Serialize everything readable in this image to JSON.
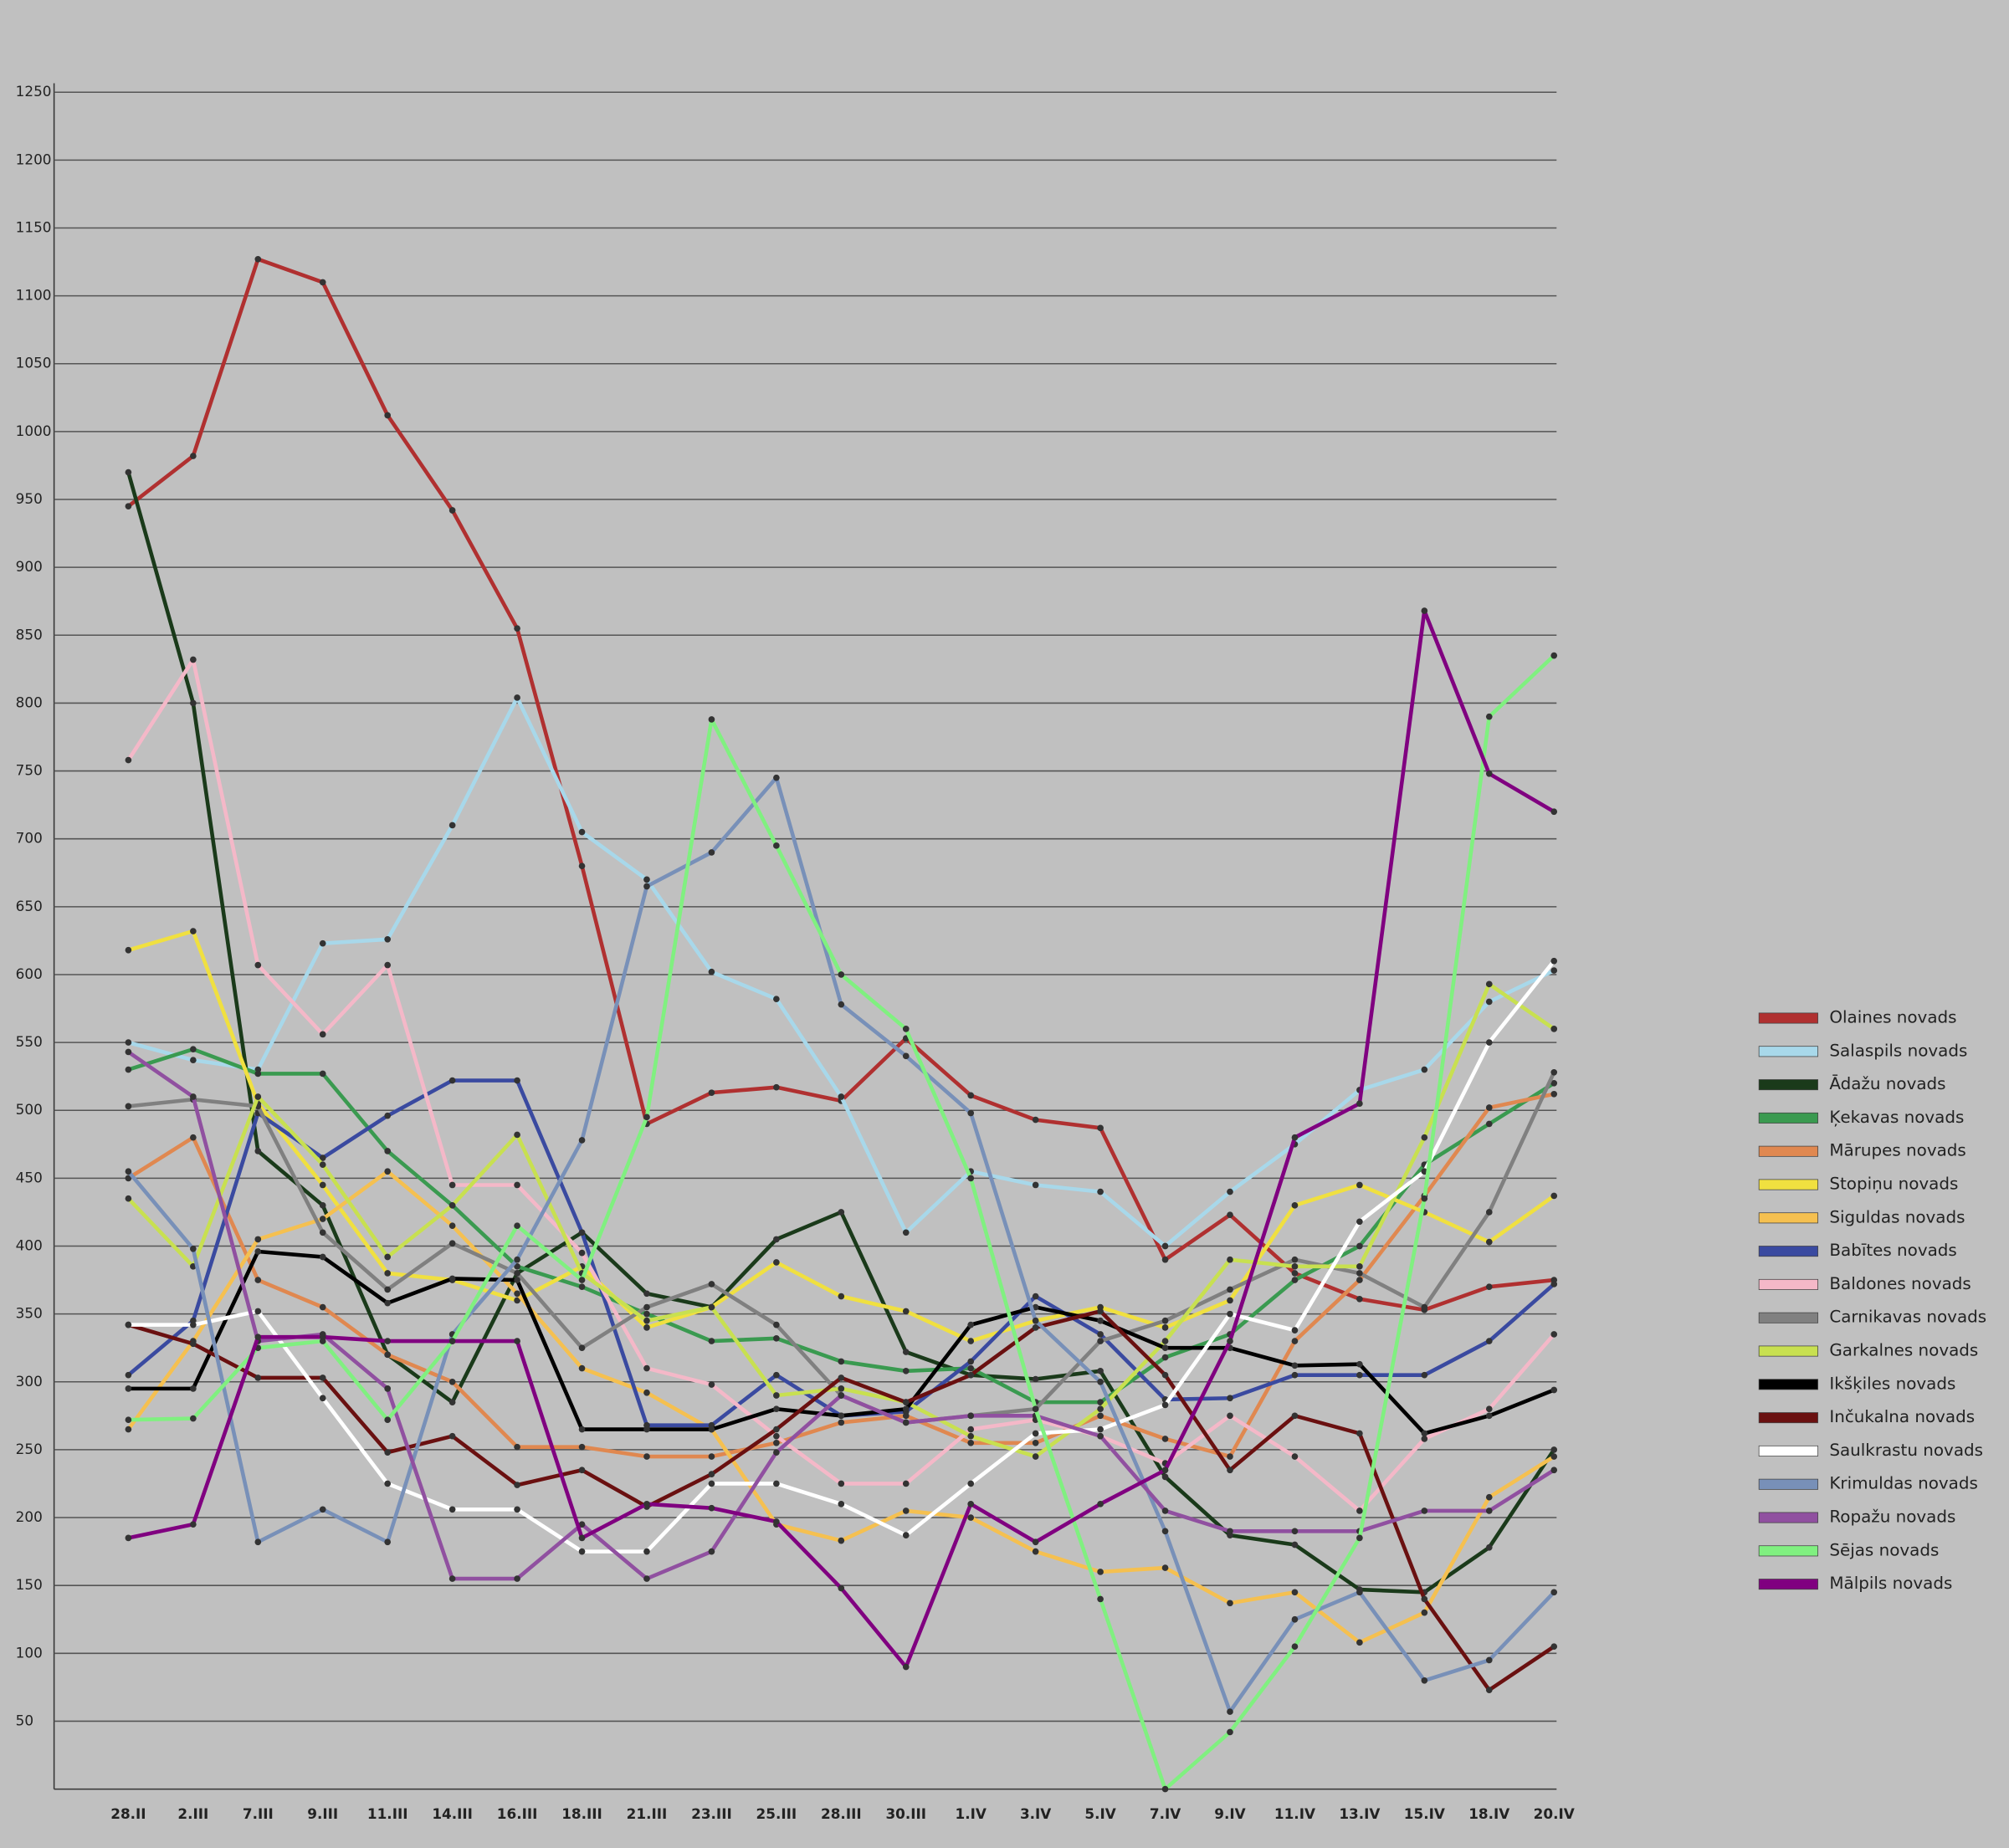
{
  "chart_data": {
    "type": "line",
    "categories": [
      "28.II",
      "2.III",
      "7.III",
      "9.III",
      "11.III",
      "14.III",
      "16.III",
      "18.III",
      "21.III",
      "23.III",
      "25.III",
      "28.III",
      "30.III",
      "1.IV",
      "3.IV",
      "5.IV",
      "7.IV",
      "9.IV",
      "11.IV",
      "13.IV",
      "15.IV",
      "18.IV",
      "20.IV"
    ],
    "ylim": [
      0,
      1250
    ],
    "yticks": [
      50,
      100,
      150,
      200,
      250,
      300,
      350,
      400,
      450,
      500,
      550,
      600,
      650,
      700,
      750,
      800,
      850,
      900,
      950,
      1000,
      1050,
      1100,
      1150,
      1200,
      1250
    ],
    "grid": true,
    "legend": "right",
    "series": [
      {
        "name": "Olaines novads",
        "color": "#b03030",
        "values": [
          945,
          982,
          1127,
          1110,
          1012,
          942,
          855,
          680,
          490,
          513,
          517,
          507,
          553,
          511,
          493,
          487,
          390,
          423,
          380,
          361,
          353,
          370,
          375
        ]
      },
      {
        "name": "Salaspils novads",
        "color": "#a8d8ea",
        "values": [
          550,
          537,
          530,
          623,
          626,
          710,
          804,
          705,
          670,
          602,
          582,
          510,
          410,
          455,
          445,
          440,
          400,
          440,
          475,
          515,
          530,
          580,
          603
        ]
      },
      {
        "name": "Ādažu novads",
        "color": "#1a3a1a",
        "values": [
          970,
          800,
          470,
          430,
          320,
          285,
          380,
          410,
          365,
          355,
          405,
          425,
          322,
          305,
          302,
          308,
          230,
          187,
          180,
          147,
          145,
          178,
          250
        ]
      },
      {
        "name": "Ķekavas novads",
        "color": "#3a9a50",
        "values": [
          530,
          545,
          527,
          527,
          470,
          430,
          385,
          370,
          350,
          330,
          332,
          315,
          308,
          310,
          285,
          285,
          318,
          335,
          375,
          400,
          460,
          490,
          520
        ]
      },
      {
        "name": "Mārupes novads",
        "color": "#e08850",
        "values": [
          450,
          480,
          375,
          355,
          320,
          300,
          252,
          252,
          245,
          245,
          255,
          270,
          275,
          255,
          255,
          275,
          258,
          245,
          330,
          375,
          437,
          502,
          512
        ]
      },
      {
        "name": "Stopiņu novads",
        "color": "#f0e040",
        "values": [
          618,
          632,
          505,
          445,
          380,
          375,
          360,
          385,
          340,
          355,
          388,
          363,
          352,
          330,
          345,
          355,
          340,
          360,
          430,
          445,
          425,
          403,
          437
        ]
      },
      {
        "name": "Siguldas novads",
        "color": "#f5c050",
        "values": [
          265,
          330,
          405,
          420,
          455,
          415,
          365,
          310,
          292,
          265,
          195,
          183,
          205,
          200,
          175,
          160,
          163,
          137,
          145,
          108,
          130,
          215,
          245
        ]
      },
      {
        "name": "Babītes novads",
        "color": "#3a4aa0",
        "values": [
          305,
          345,
          498,
          465,
          496,
          522,
          522,
          410,
          268,
          268,
          305,
          275,
          278,
          315,
          363,
          335,
          287,
          288,
          305,
          305,
          305,
          330,
          372
        ]
      },
      {
        "name": "Baldones novads",
        "color": "#f4b8c8",
        "values": [
          758,
          832,
          607,
          556,
          607,
          445,
          445,
          395,
          310,
          298,
          260,
          225,
          225,
          265,
          272,
          260,
          240,
          275,
          245,
          205,
          258,
          280,
          335
        ]
      },
      {
        "name": "Carnikavas novads",
        "color": "#808080",
        "values": [
          503,
          508,
          503,
          410,
          368,
          402,
          380,
          325,
          355,
          372,
          342,
          290,
          270,
          275,
          280,
          330,
          345,
          368,
          390,
          380,
          355,
          425,
          528
        ]
      },
      {
        "name": "Garkalnes novads",
        "color": "#c8e050",
        "values": [
          435,
          385,
          510,
          460,
          392,
          430,
          482,
          380,
          345,
          355,
          290,
          295,
          285,
          260,
          245,
          280,
          330,
          390,
          385,
          385,
          480,
          593,
          560
        ]
      },
      {
        "name": "Ikšķiles novads",
        "color": "#000000",
        "values": [
          295,
          295,
          396,
          392,
          358,
          376,
          375,
          265,
          265,
          265,
          280,
          275,
          280,
          342,
          355,
          345,
          325,
          325,
          312,
          313,
          262,
          275,
          294
        ]
      },
      {
        "name": "Inčukalna novads",
        "color": "#6a1010",
        "values": [
          342,
          328,
          303,
          303,
          248,
          260,
          224,
          235,
          208,
          232,
          265,
          303,
          285,
          305,
          340,
          352,
          305,
          235,
          275,
          262,
          140,
          73,
          105
        ]
      },
      {
        "name": "Saulkrastu novads",
        "color": "#ffffff",
        "values": [
          342,
          342,
          352,
          288,
          225,
          206,
          206,
          175,
          175,
          225,
          225,
          210,
          187,
          225,
          262,
          265,
          283,
          350,
          338,
          418,
          455,
          550,
          610
        ]
      },
      {
        "name": "Krimuldas novads",
        "color": "#7890b8",
        "values": [
          455,
          398,
          182,
          206,
          182,
          335,
          390,
          478,
          665,
          690,
          745,
          578,
          540,
          498,
          345,
          300,
          190,
          57,
          125,
          145,
          80,
          95,
          145
        ]
      },
      {
        "name": "Ropažu novads",
        "color": "#9050a0",
        "values": [
          543,
          510,
          330,
          335,
          295,
          155,
          155,
          195,
          155,
          175,
          248,
          290,
          270,
          275,
          275,
          260,
          205,
          190,
          190,
          190,
          205,
          205,
          235
        ]
      },
      {
        "name": "Sējas novads",
        "color": "#80f080",
        "values": [
          272,
          273,
          325,
          330,
          272,
          330,
          415,
          375,
          495,
          788,
          695,
          600,
          560,
          450,
          280,
          140,
          0,
          42,
          105,
          185,
          435,
          790,
          835
        ]
      },
      {
        "name": "Mālpils novads",
        "color": "#800080",
        "values": [
          185,
          195,
          333,
          333,
          330,
          330,
          330,
          185,
          210,
          207,
          197,
          148,
          90,
          210,
          182,
          210,
          235,
          330,
          480,
          505,
          868,
          748,
          720
        ]
      }
    ]
  }
}
